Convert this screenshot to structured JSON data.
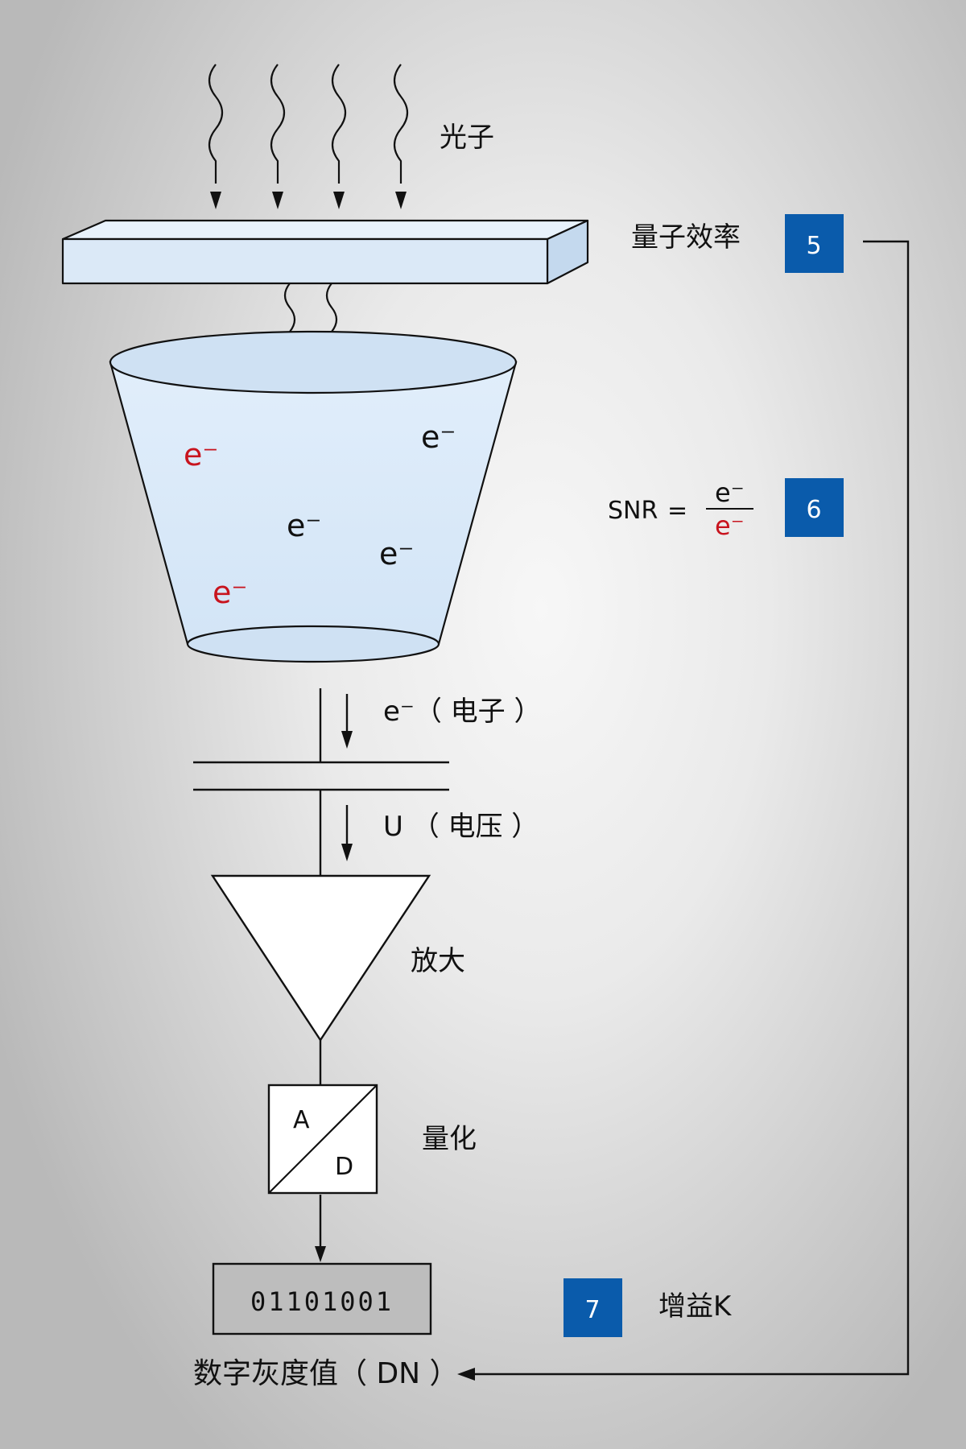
{
  "photons_label": "光子",
  "quantum_efficiency_label": "量子效率",
  "snr": {
    "lhs": "SNR",
    "equals": "=",
    "numerator": "e⁻",
    "denominator": "e⁻"
  },
  "electrons": [
    "e⁻",
    "e⁻",
    "e⁻",
    "e⁻",
    "e⁻"
  ],
  "electron_label": "e⁻（ 电子 ）",
  "voltage_label": "U （ 电压 ）",
  "amplify_label": "放大",
  "adc": {
    "top": "A",
    "bottom": "D"
  },
  "quantize_label": "量化",
  "digital_value": "01101001",
  "dn_label": "数字灰度值（ DN ）",
  "gain_label": "增益K",
  "badges": [
    "5",
    "6",
    "7"
  ],
  "colors": {
    "badge": "#0a5bab",
    "signal_electron": "#c8141e",
    "noise_electron": "#111111",
    "sensor": "#dbe9f7",
    "readout": "#bdbdbd"
  }
}
